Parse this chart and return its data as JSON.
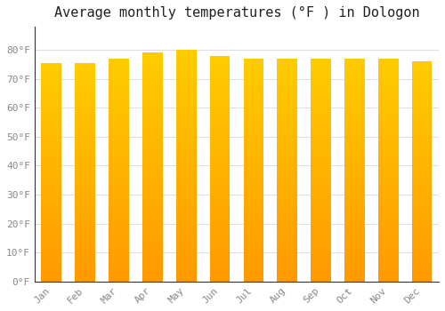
{
  "title": "Average monthly temperatures (°F ) in Dologon",
  "months": [
    "Jan",
    "Feb",
    "Mar",
    "Apr",
    "May",
    "Jun",
    "Jul",
    "Aug",
    "Sep",
    "Oct",
    "Nov",
    "Dec"
  ],
  "values": [
    75.5,
    75.5,
    77.0,
    79.0,
    80.0,
    78.0,
    77.0,
    77.0,
    77.0,
    77.0,
    77.0,
    76.0
  ],
  "bar_color_top": "#FFCC00",
  "bar_color_bottom": "#FF9900",
  "background_color": "#FFFFFF",
  "grid_color": "#DDDDDD",
  "ylim": [
    0,
    88
  ],
  "ytick_values": [
    0,
    10,
    20,
    30,
    40,
    50,
    60,
    70,
    80
  ],
  "title_fontsize": 11,
  "tick_fontsize": 8,
  "tick_color": "#888888",
  "bar_width": 0.6
}
